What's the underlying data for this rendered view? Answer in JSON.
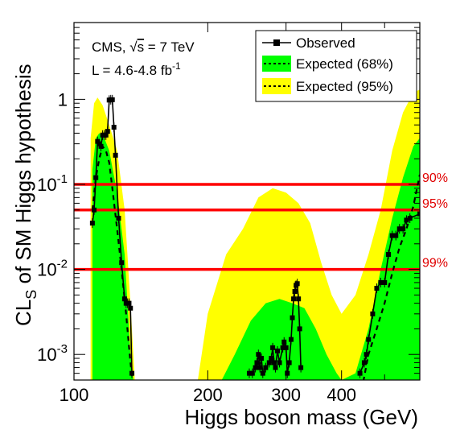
{
  "chart_data": {
    "type": "line",
    "xlabel": "Higgs boson mass (GeV)",
    "ylabel_main": "CL",
    "ylabel_sub": "S",
    "ylabel_rest": " of SM Higgs hypothesis",
    "x_scale": "log",
    "y_scale": "log",
    "xlim": [
      100,
      600
    ],
    "ylim": [
      0.0005,
      8
    ],
    "x_tick_labels": [
      {
        "value": 100,
        "label": "100"
      },
      {
        "value": 200,
        "label": "200"
      },
      {
        "value": 300,
        "label": "300"
      },
      {
        "value": 400,
        "label": "400"
      }
    ],
    "y_tick_labels": [
      {
        "value": 0.001,
        "base": "10",
        "exp": "-3"
      },
      {
        "value": 0.01,
        "base": "10",
        "exp": "-2"
      },
      {
        "value": 0.1,
        "base": "10",
        "exp": "-1"
      },
      {
        "value": 1,
        "base": "1",
        "exp": ""
      }
    ],
    "info": {
      "line1_pre": "CMS, ",
      "line1_sqrt": "√",
      "line1_s": "s",
      "line1_post": " = 7 TeV",
      "line2": "L = 4.6-4.8 fb",
      "line2_sup": "-1"
    },
    "legend": {
      "placement": "top-right",
      "entries": [
        {
          "label": "Observed",
          "style": "marker-line",
          "color": "#000000"
        },
        {
          "label": "Expected (68%)",
          "style": "band",
          "color": "#00ff00"
        },
        {
          "label": "Expected (95%)",
          "style": "band",
          "color": "#ffff00"
        }
      ]
    },
    "confidence_lines": [
      {
        "label": "90%",
        "value": 0.1,
        "color": "#ff0000"
      },
      {
        "label": "95%",
        "value": 0.05,
        "color": "#ff0000"
      },
      {
        "label": "99%",
        "value": 0.01,
        "color": "#ff0000"
      }
    ],
    "series": [
      {
        "name": "Observed",
        "color": "#000000",
        "segments": [
          [
            [
              110,
              0.035
            ],
            [
              111,
              0.05
            ],
            [
              112,
              0.12
            ],
            [
              113,
              0.32
            ],
            [
              114,
              0.3
            ],
            [
              115,
              0.28
            ],
            [
              116,
              0.38
            ],
            [
              117,
              0.38
            ],
            [
              118,
              0.38
            ],
            [
              119,
              0.42
            ],
            [
              120,
              0.98
            ],
            [
              121,
              0.99
            ],
            [
              122,
              0.99
            ],
            [
              123,
              0.47
            ],
            [
              124,
              0.22
            ],
            [
              126,
              0.04
            ],
            [
              128,
              0.012
            ],
            [
              130,
              0.0045
            ],
            [
              131,
              0.004
            ],
            [
              132,
              0.004
            ],
            [
              133,
              0.004
            ],
            [
              134,
              0.0035
            ],
            [
              135,
              0.0006
            ]
          ],
          [
            [
              248,
              0.0006
            ],
            [
              252,
              0.0006
            ],
            [
              256,
              0.0007
            ],
            [
              258,
              0.0008
            ],
            [
              260,
              0.001
            ],
            [
              262,
              0.0007
            ],
            [
              264,
              0.0009
            ],
            [
              266,
              0.0006
            ],
            [
              270,
              0.0007
            ],
            [
              275,
              0.0008
            ],
            [
              278,
              0.0009
            ],
            [
              280,
              0.0012
            ],
            [
              282,
              0.0008
            ],
            [
              284,
              0.0007
            ],
            [
              287,
              0.0011
            ],
            [
              290,
              0.0008
            ],
            [
              295,
              0.0012
            ],
            [
              297,
              0.0014
            ],
            [
              300,
              0.0012
            ],
            [
              302,
              0.0006
            ],
            [
              305,
              0.0008
            ],
            [
              308,
              0.0015
            ],
            [
              310,
              0.0027
            ],
            [
              312,
              0.0045
            ],
            [
              314,
              0.0055
            ],
            [
              316,
              0.0065
            ],
            [
              318,
              0.0068
            ],
            [
              320,
              0.0045
            ],
            [
              322,
              0.002
            ],
            [
              324,
              0.0007
            ]
          ],
          [
            [
              440,
              0.0006
            ],
            [
              450,
              0.0008
            ],
            [
              455,
              0.001
            ],
            [
              460,
              0.0015
            ],
            [
              470,
              0.003
            ],
            [
              480,
              0.006
            ],
            [
              490,
              0.007
            ],
            [
              500,
              0.007
            ],
            [
              510,
              0.015
            ],
            [
              520,
              0.025
            ],
            [
              530,
              0.025
            ],
            [
              540,
              0.03
            ],
            [
              550,
              0.03
            ],
            [
              560,
              0.038
            ],
            [
              570,
              0.04
            ],
            [
              600,
              0.045
            ]
          ]
        ]
      },
      {
        "name": "Expected",
        "color": "#000000",
        "dashed": true,
        "points": [
          [
            110,
            0.05
          ],
          [
            112,
            0.12
          ],
          [
            114,
            0.2
          ],
          [
            116,
            0.28
          ],
          [
            118,
            0.25
          ],
          [
            120,
            0.18
          ],
          [
            122,
            0.09
          ],
          [
            125,
            0.03
          ],
          [
            128,
            0.01
          ],
          [
            131,
            0.003
          ],
          [
            134,
            0.0008
          ],
          [
            137,
            0.0003
          ]
        ],
        "points_high": [
          [
            440,
            0.0003
          ],
          [
            460,
            0.001
          ],
          [
            480,
            0.002
          ],
          [
            500,
            0.004
          ],
          [
            520,
            0.009
          ],
          [
            540,
            0.018
          ],
          [
            560,
            0.03
          ],
          [
            580,
            0.055
          ],
          [
            600,
            0.13
          ]
        ]
      }
    ],
    "bands": {
      "yellow": [
        {
          "upper": [
            [
              109,
              0.35
            ],
            [
              111,
              0.9
            ],
            [
              113,
              1.05
            ],
            [
              116,
              0.85
            ],
            [
              120,
              0.5
            ],
            [
              125,
              0.25
            ],
            [
              130,
              0.05
            ],
            [
              134,
              0.004
            ],
            [
              137,
              0.0005
            ]
          ],
          "lower": [
            [
              109,
              0.0005
            ]
          ]
        },
        {
          "upper": [
            [
              190,
              0.0005
            ],
            [
              200,
              0.003
            ],
            [
              220,
              0.015
            ],
            [
              240,
              0.03
            ],
            [
              260,
              0.07
            ],
            [
              280,
              0.09
            ],
            [
              300,
              0.08
            ],
            [
              320,
              0.06
            ],
            [
              340,
              0.035
            ],
            [
              360,
              0.012
            ],
            [
              380,
              0.005
            ],
            [
              400,
              0.003
            ],
            [
              430,
              0.005
            ],
            [
              460,
              0.015
            ],
            [
              490,
              0.05
            ],
            [
              520,
              0.25
            ],
            [
              550,
              0.7
            ],
            [
              580,
              1.2
            ],
            [
              600,
              1.3
            ]
          ],
          "lower": [
            [
              600,
              0.0005
            ]
          ]
        }
      ],
      "green": [
        {
          "upper": [
            [
              110,
              0.15
            ],
            [
              112,
              0.35
            ],
            [
              114,
              0.4
            ],
            [
              117,
              0.35
            ],
            [
              120,
              0.25
            ],
            [
              125,
              0.08
            ],
            [
              130,
              0.015
            ],
            [
              134,
              0.001
            ],
            [
              136,
              0.0005
            ]
          ],
          "lower": [
            [
              109,
              0.0005
            ]
          ]
        },
        {
          "upper": [
            [
              215,
              0.0005
            ],
            [
              230,
              0.001
            ],
            [
              250,
              0.0025
            ],
            [
              270,
              0.004
            ],
            [
              290,
              0.0045
            ],
            [
              310,
              0.004
            ],
            [
              330,
              0.0035
            ],
            [
              350,
              0.002
            ],
            [
              370,
              0.001
            ],
            [
              390,
              0.0006
            ],
            [
              400,
              0.0005
            ],
            [
              430,
              0.0006
            ],
            [
              460,
              0.002
            ],
            [
              490,
              0.01
            ],
            [
              520,
              0.04
            ],
            [
              550,
              0.12
            ],
            [
              580,
              0.28
            ],
            [
              600,
              0.35
            ]
          ],
          "lower": [
            [
              600,
              0.0005
            ]
          ]
        }
      ]
    }
  }
}
